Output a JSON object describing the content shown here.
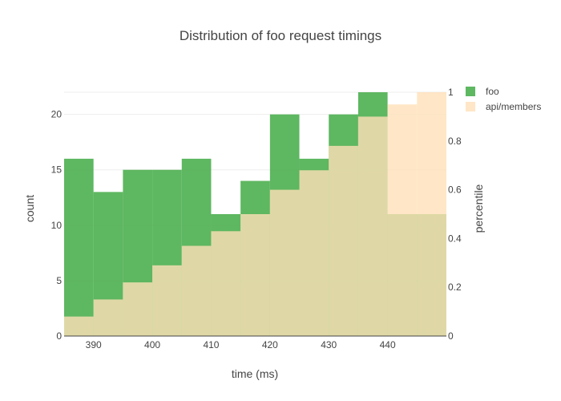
{
  "chart_data": {
    "type": "bar",
    "title": "Distribution of foo request timings",
    "xlabel": "time (ms)",
    "ylabel": "count",
    "y2label": "percentile",
    "xlim": [
      385,
      450
    ],
    "ylim": [
      0,
      22
    ],
    "y2lim": [
      0,
      1
    ],
    "grid": true,
    "legend_position": "top-right",
    "x_ticks": [
      "390",
      "400",
      "410",
      "420",
      "430",
      "440"
    ],
    "y_ticks": [
      "0",
      "5",
      "10",
      "15",
      "20"
    ],
    "y2_ticks": [
      "0",
      "0.2",
      "0.4",
      "0.6",
      "0.8",
      "1"
    ],
    "bins": [
      [
        385,
        390
      ],
      [
        390,
        395
      ],
      [
        395,
        400
      ],
      [
        400,
        405
      ],
      [
        405,
        410
      ],
      [
        410,
        415
      ],
      [
        415,
        420
      ],
      [
        420,
        425
      ],
      [
        425,
        430
      ],
      [
        430,
        435
      ],
      [
        435,
        440
      ],
      [
        440,
        445
      ],
      [
        445,
        450
      ]
    ],
    "series": [
      {
        "name": "foo",
        "axis": "y",
        "color": "#4caf50",
        "opacity": 0.9,
        "values": [
          16,
          13,
          15,
          15,
          16,
          11,
          14,
          20,
          16,
          20,
          22,
          11,
          11
        ]
      },
      {
        "name": "api/members",
        "axis": "y2",
        "color": "#ffe0b8",
        "opacity": 0.8,
        "values": [
          0.08,
          0.15,
          0.22,
          0.29,
          0.37,
          0.43,
          0.5,
          0.6,
          0.68,
          0.78,
          0.9,
          0.95,
          1.0
        ]
      }
    ]
  }
}
